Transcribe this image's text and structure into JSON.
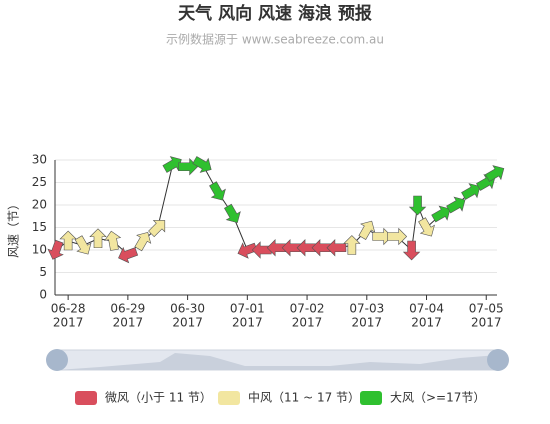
{
  "chart_data": {
    "type": "wind-arrows",
    "title": "天气 风向 风速 海浪 预报",
    "subtitle": "示例数据源于 www.seabreeze.com.au",
    "y_label": "风速（节）",
    "x": [
      -0.2,
      0,
      0.25,
      0.5,
      0.75,
      1.0,
      1.25,
      1.5,
      1.75,
      2.0,
      2.25,
      2.5,
      2.75,
      3.0,
      3.25,
      3.5,
      3.75,
      4.0,
      4.25,
      4.5,
      4.75,
      5.0,
      5.25,
      5.5,
      5.75,
      5.85,
      6.0,
      6.25,
      6.5,
      6.75,
      7.0,
      7.15
    ],
    "values": [
      10,
      12,
      11,
      12.5,
      12,
      9,
      12,
      15,
      29,
      28.5,
      29,
      23,
      18,
      10,
      10,
      10.5,
      10.5,
      10.5,
      10.5,
      10.5,
      11,
      14.5,
      13,
      13,
      10,
      20,
      15,
      18,
      20,
      23,
      25,
      27
    ],
    "directions": [
      250,
      90,
      300,
      90,
      100,
      200,
      60,
      45,
      30,
      0,
      330,
      300,
      300,
      200,
      180,
      180,
      180,
      180,
      180,
      180,
      90,
      60,
      0,
      0,
      270,
      270,
      300,
      30,
      30,
      30,
      30,
      30
    ],
    "line_color": "#333333",
    "pieces": [
      {
        "label": "微风（小于 11 节）",
        "color": "#d94e5d",
        "max": 11
      },
      {
        "label": "中风（11 ~ 17 节）",
        "color": "#f2e6a0",
        "min": 11,
        "max": 17
      },
      {
        "label": "大风（>=17节）",
        "color": "#2fc02f",
        "min": 17
      }
    ],
    "xlim": [
      -0.22,
      7.18
    ],
    "xticks": [
      {
        "value": 0,
        "label": "06-28"
      },
      {
        "value": 1,
        "label": "06-29"
      },
      {
        "value": 2,
        "label": "06-30"
      },
      {
        "value": 3,
        "label": "07-01"
      },
      {
        "value": 4,
        "label": "07-02"
      },
      {
        "value": 5,
        "label": "07-03"
      },
      {
        "value": 6,
        "label": "07-04"
      },
      {
        "value": 7,
        "label": "07-05"
      }
    ],
    "x_tick_years": [
      "2017",
      "2017",
      "2017",
      "2017",
      "2017",
      "2017",
      "2017",
      "2017"
    ],
    "ylim": [
      0,
      30
    ],
    "yticks": [
      0,
      5,
      10,
      15,
      20,
      25,
      30
    ],
    "grid": true
  }
}
